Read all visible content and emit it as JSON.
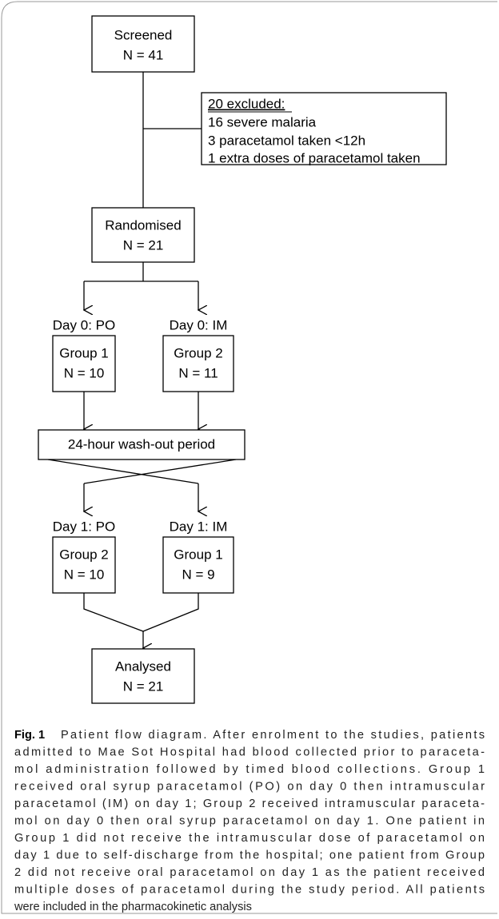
{
  "nodes": [
    {
      "title": "Screened",
      "count": "N = 41"
    },
    {
      "title": "Randomised",
      "count": "N = 21"
    },
    {
      "title": "Group 1",
      "count": "N = 10"
    },
    {
      "title": "Group 2",
      "count": "N = 11"
    },
    {
      "title": "Group 2",
      "count": "N = 10"
    },
    {
      "title": "Group 1",
      "count": "N = 9"
    },
    {
      "title": "Analysed",
      "count": "N = 21"
    }
  ],
  "exclusion": {
    "heading": "20 excluded:",
    "items": [
      "16 severe malaria",
      "3 paracetamol taken <12h",
      "1 extra doses of paracetamol taken"
    ]
  },
  "labels": [
    "Day 0: PO",
    "Day 0: IM",
    "Day 1: PO",
    "Day 1: IM"
  ],
  "washout": "24-hour wash-out period",
  "caption": {
    "label": "Fig. 1",
    "lines": [
      "Patient flow diagram. After enrolment to the studies, patients",
      "admitted to Mae Sot Hospital had blood collected prior to paraceta-",
      "mol administration followed by timed blood collections. Group 1",
      "received oral syrup paracetamol (PO) on day 0 then intramuscular",
      "paracetamol (IM) on day 1; Group 2 received intramuscular paraceta-",
      "mol on day 0 then oral syrup paracetamol on day 1. One patient in",
      "Group 1 did not receive the intramuscular dose of paracetamol on",
      "day 1 due to self-discharge from the hospital; one patient from Group",
      "2 did not receive oral paracetamol on day 1 as the patient received",
      "multiple doses of paracetamol during the study period. All patients",
      "were included in the pharmacokinetic analysis"
    ]
  }
}
